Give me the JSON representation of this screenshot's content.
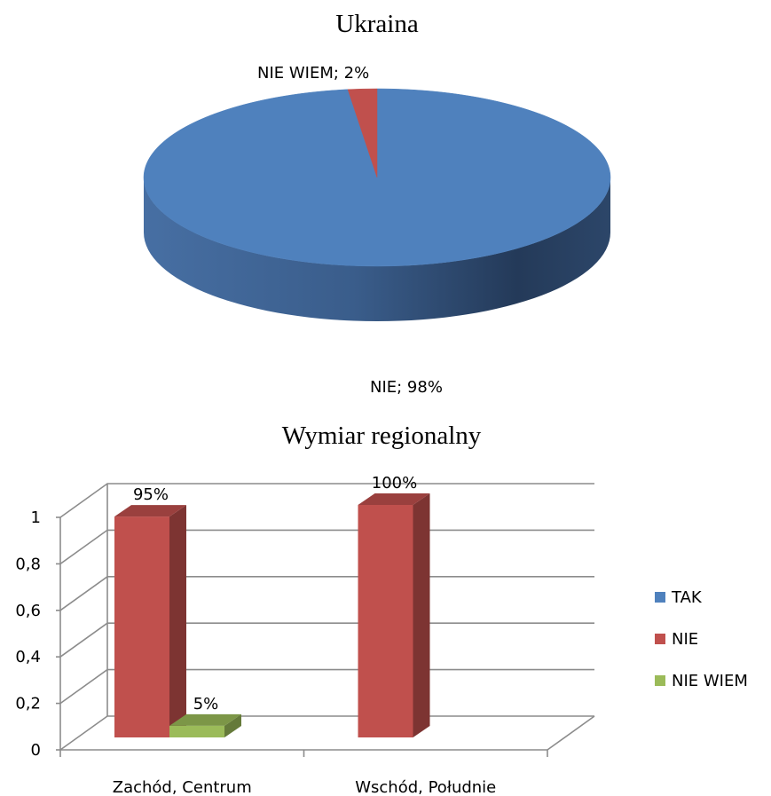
{
  "chart_data": [
    {
      "type": "pie",
      "title": "Ukraina",
      "labels": [
        "NIE",
        "NIE WIEM"
      ],
      "values": [
        98,
        2
      ],
      "data_labels": [
        "NIE; 98%",
        "NIE WIEM; 2%"
      ],
      "colors": [
        "#4f81bd",
        "#c0504d"
      ],
      "style": "3d"
    },
    {
      "type": "bar",
      "title": "Wymiar regionalny",
      "categories": [
        "Zachód, Centrum",
        "Wschód, Południe"
      ],
      "series": [
        {
          "name": "TAK",
          "values": [
            0,
            0
          ],
          "color": "#4f81bd",
          "labels": [
            "",
            ""
          ]
        },
        {
          "name": "NIE",
          "values": [
            0.95,
            1.0
          ],
          "color": "#c0504d",
          "labels": [
            "95%",
            "100%"
          ]
        },
        {
          "name": "NIE WIEM",
          "values": [
            0.05,
            0
          ],
          "color": "#9bbb59",
          "labels": [
            "5%",
            ""
          ]
        }
      ],
      "y_ticks": [
        "0",
        "0,2",
        "0,4",
        "0,6",
        "0,8",
        "1"
      ],
      "ylim": [
        0,
        1
      ],
      "legend": "right",
      "grid": true,
      "style": "3d"
    }
  ]
}
